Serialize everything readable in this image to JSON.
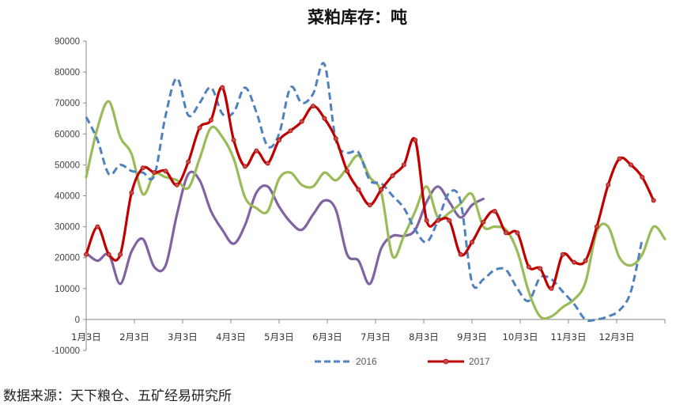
{
  "chart_data": {
    "type": "line",
    "title": "菜粕库存：吨",
    "ylim": [
      -10000,
      90000
    ],
    "yticks": [
      90000,
      80000,
      70000,
      60000,
      50000,
      40000,
      30000,
      20000,
      10000,
      0,
      -10000
    ],
    "ytick_labels": [
      "90000",
      "80000",
      "70000",
      "60000",
      "50000",
      "40000",
      "30000",
      "20000",
      "10000",
      "0",
      "-10000"
    ],
    "xtick_labels": [
      "1月3日",
      "2月3日",
      "3月3日",
      "4月3日",
      "5月3日",
      "6月3日",
      "7月3日",
      "8月3日",
      "9月3日",
      "10月3日",
      "11月3日",
      "12月3日"
    ],
    "grid": false,
    "legend_position": "bottom",
    "series": [
      {
        "name": "2016",
        "color": "#4f81bd",
        "style": "dashed",
        "marker": false,
        "values": [
          65500,
          58000,
          47000,
          50000,
          48000,
          47500,
          46500,
          66000,
          78000,
          66000,
          70000,
          75000,
          66500,
          67000,
          75000,
          67000,
          56000,
          60000,
          75000,
          70000,
          73000,
          82500,
          58000,
          54000,
          54000,
          45000,
          44000,
          40000,
          36000,
          29000,
          25000,
          32000,
          41000,
          38000,
          12000,
          13000,
          16000,
          16000,
          10000,
          6000,
          13500,
          13000,
          9000,
          5000,
          0,
          0,
          1000,
          3000,
          9000,
          26000
        ]
      },
      {
        "name": "2017",
        "color": "#c00000",
        "style": "solid",
        "marker": true,
        "values": [
          21000,
          30000,
          21000,
          21000,
          41000,
          49000,
          47500,
          48000,
          43500,
          51000,
          62000,
          64500,
          75000,
          58000,
          49500,
          54500,
          50500,
          58000,
          61000,
          64000,
          69000,
          65000,
          58500,
          48000,
          42000,
          37000,
          42000,
          46500,
          50000,
          58000,
          32000,
          32000,
          32000,
          21000,
          25000,
          31500,
          35000,
          28000,
          28000,
          17000,
          16500,
          10000,
          21000,
          18500,
          19000,
          30000,
          43500,
          52000,
          50000,
          46000,
          38500
        ]
      },
      {
        "name": "",
        "color": "#9bbb59",
        "style": "solid",
        "marker": false,
        "values": [
          46000,
          62000,
          70500,
          59000,
          53500,
          40500,
          47000,
          46000,
          45000,
          42500,
          52000,
          62000,
          59000,
          52000,
          39500,
          36000,
          35000,
          45500,
          47500,
          43500,
          43000,
          47500,
          45000,
          49000,
          53000,
          46000,
          41000,
          20500,
          27000,
          35000,
          43000,
          33000,
          34500,
          37500,
          40500,
          30000,
          30000,
          29000,
          22000,
          9000,
          1000,
          1000,
          4000,
          6500,
          12000,
          28500,
          30000,
          20000,
          17500,
          21000,
          30000,
          26000
        ]
      },
      {
        "name": "",
        "color": "#8064a2",
        "style": "solid",
        "marker": false,
        "values": [
          21500,
          19000,
          21000,
          11500,
          22000,
          26000,
          17000,
          17500,
          34000,
          47000,
          45000,
          35000,
          29000,
          24500,
          30500,
          41000,
          43000,
          36500,
          31500,
          29000,
          34000,
          38500,
          35500,
          21000,
          19000,
          11500,
          23000,
          27000,
          27000,
          29000,
          38000,
          43000,
          38000,
          33000,
          37000,
          39000
        ]
      }
    ]
  },
  "source_note": "数据来源：天下粮仓、五矿经易研究所"
}
